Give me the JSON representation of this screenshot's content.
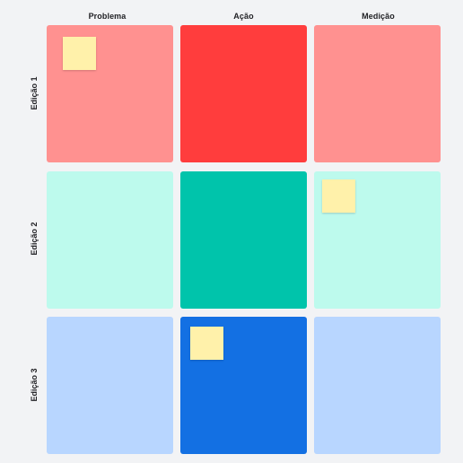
{
  "columns": [
    {
      "label": "Problema"
    },
    {
      "label": "Ação"
    },
    {
      "label": "Medição"
    }
  ],
  "rows": [
    {
      "label": "Edição 1"
    },
    {
      "label": "Edição 2"
    },
    {
      "label": "Edição 3"
    }
  ],
  "colors": {
    "background": "#f2f3f5",
    "row1_light": "#ff9190",
    "row1_dark": "#ff3d3d",
    "row2_light": "#bdfaed",
    "row2_dark": "#00c4ab",
    "row3_light": "#b8d6ff",
    "row3_dark": "#1370e3",
    "sticky_note": "#fff1aa"
  },
  "sticky_notes": [
    {
      "row": 1,
      "column": "Problema"
    },
    {
      "row": 2,
      "column": "Medição"
    },
    {
      "row": 3,
      "column": "Ação"
    }
  ]
}
